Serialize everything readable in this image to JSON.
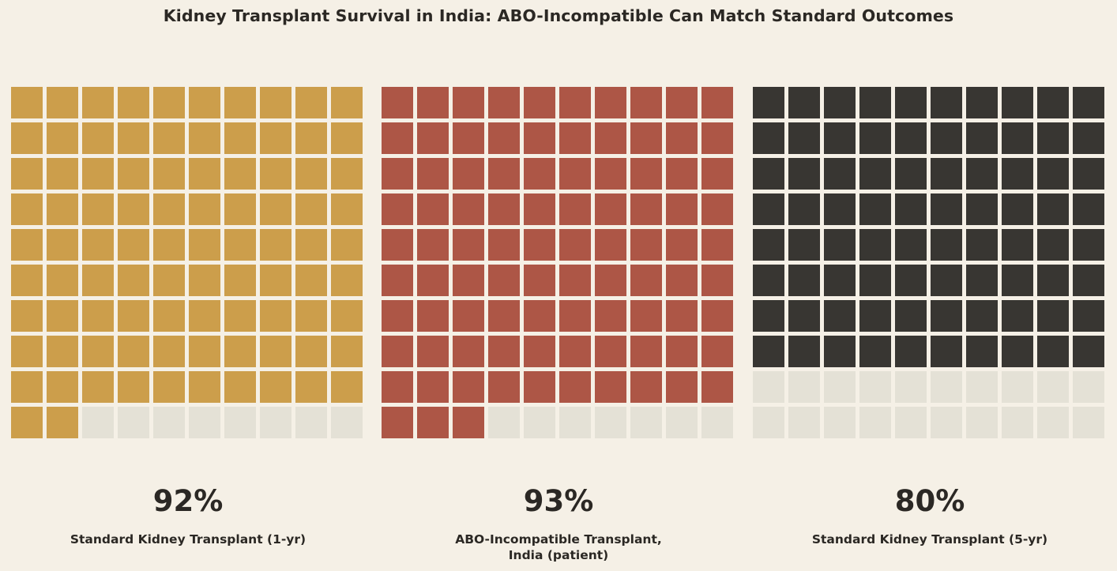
{
  "title": "Kidney Transplant Survival in India: ABO-Incompatible Can Match Standard Outcomes",
  "colors": {
    "background": "#f5f0e6",
    "empty_cell": "#e4e1d6",
    "text": "#2b2824"
  },
  "chart_data": [
    {
      "type": "waffle",
      "grid": [
        10,
        10
      ],
      "value": 92,
      "value_label": "92%",
      "label": "Standard Kidney Transplant (1-yr)",
      "color": "#cc9e4b"
    },
    {
      "type": "waffle",
      "grid": [
        10,
        10
      ],
      "value": 93,
      "value_label": "93%",
      "label": "ABO-Incompatible Transplant, India (patient)",
      "color": "#ad5646"
    },
    {
      "type": "waffle",
      "grid": [
        10,
        10
      ],
      "value": 80,
      "value_label": "80%",
      "label": "Standard Kidney Transplant (5-yr)",
      "color": "#383632"
    }
  ]
}
